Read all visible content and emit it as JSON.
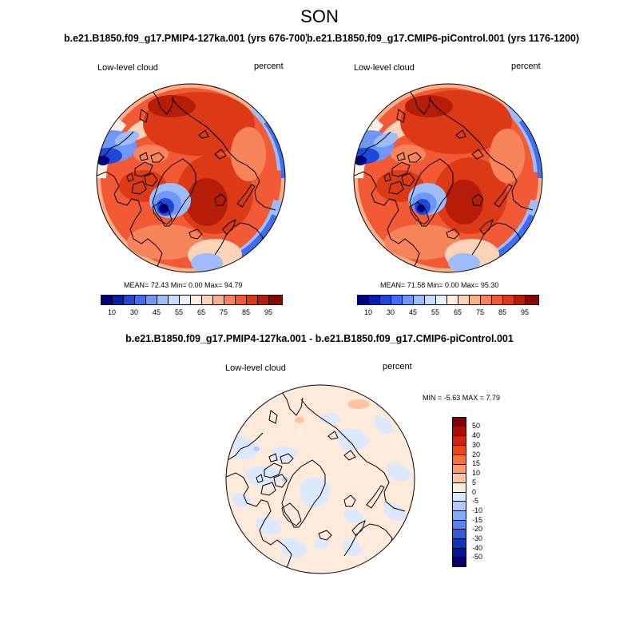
{
  "title": "SON",
  "panels": [
    {
      "case_label": "b.e21.B1850.f09_g17.PMIP4-127ka.001 (yrs 676-700)",
      "variable": "Low-level cloud",
      "units": "percent",
      "stats_text": "MEAN=  72.43  Min=   0.00  Max=  94.79",
      "stats": {
        "mean": 72.43,
        "min": 0.0,
        "max": 94.79
      }
    },
    {
      "case_label": "b.e21.B1850.f09_g17.CMIP6-piControl.001 (yrs 1176-1200)",
      "variable": "Low-level cloud",
      "units": "percent",
      "stats_text": "MEAN=  71.58  Min=   0.00  Max=  95.30",
      "stats": {
        "mean": 71.58,
        "min": 0.0,
        "max": 95.3
      }
    }
  ],
  "colorbar": {
    "tick_labels": [
      "10",
      "30",
      "45",
      "55",
      "65",
      "75",
      "85",
      "95"
    ],
    "colors": [
      "#00007f",
      "#0a1fa8",
      "#1f48d6",
      "#3f6ff0",
      "#6f97f7",
      "#9ebcfa",
      "#c8dcfc",
      "#eaf2fe",
      "#feefe2",
      "#fdd3b8",
      "#fbb08a",
      "#f8845c",
      "#f25a36",
      "#dc3a17",
      "#b61d09",
      "#870a02"
    ]
  },
  "diff": {
    "title": "b.e21.B1850.f09_g17.PMIP4-127ka.001 - b.e21.B1850.f09_g17.CMIP6-piControl.001",
    "variable": "Low-level cloud",
    "units": "percent",
    "minmax_text": "MIN =  -5.63 MAX =   7.79",
    "stats": {
      "min": -5.63,
      "max": 7.79
    },
    "levels": [
      "50",
      "40",
      "30",
      "20",
      "15",
      "10",
      "5",
      "0",
      "-5",
      "-10",
      "-15",
      "-20",
      "-30",
      "-40",
      "-50"
    ],
    "colors": [
      "#7f0000",
      "#a80e02",
      "#cf2608",
      "#ec4616",
      "#f8703b",
      "#fb9a6a",
      "#fdc49f",
      "#feeadb",
      "#dbe8fd",
      "#b2cdfa",
      "#85abf6",
      "#5683ee",
      "#2d5be2",
      "#1033c3",
      "#03139a",
      "#00006b"
    ]
  }
}
